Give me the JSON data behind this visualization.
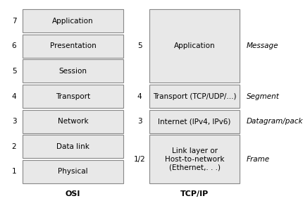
{
  "title_osi": "OSI",
  "title_tcpip": "TCP/IP",
  "osi_layers": [
    {
      "num": "7",
      "label": "Application"
    },
    {
      "num": "6",
      "label": "Presentation"
    },
    {
      "num": "5",
      "label": "Session"
    },
    {
      "num": "4",
      "label": "Transport"
    },
    {
      "num": "3",
      "label": "Network"
    },
    {
      "num": "2",
      "label": "Data link"
    },
    {
      "num": "1",
      "label": "Physical"
    }
  ],
  "tcpip_layers": [
    {
      "num": "5",
      "label": "Application",
      "span": 3,
      "annotation": "Message"
    },
    {
      "num": "4",
      "label": "Transport (TCP/UDP/...)",
      "span": 1,
      "annotation": "Segment"
    },
    {
      "num": "3",
      "label": "Internet (IPv4, IPv6)",
      "span": 1,
      "annotation": "Datagram/packet"
    },
    {
      "num": "1/2",
      "label": "Link layer or\nHost-to-network\n(Ethernet,. . .)",
      "span": 2,
      "annotation": "Frame"
    }
  ],
  "box_fill": "#e8e8e8",
  "box_edge": "#888888",
  "bg_color": "#ffffff",
  "fontsize_label": 7.5,
  "fontsize_num": 7.5,
  "fontsize_title": 8,
  "fontsize_annotation": 7.5
}
